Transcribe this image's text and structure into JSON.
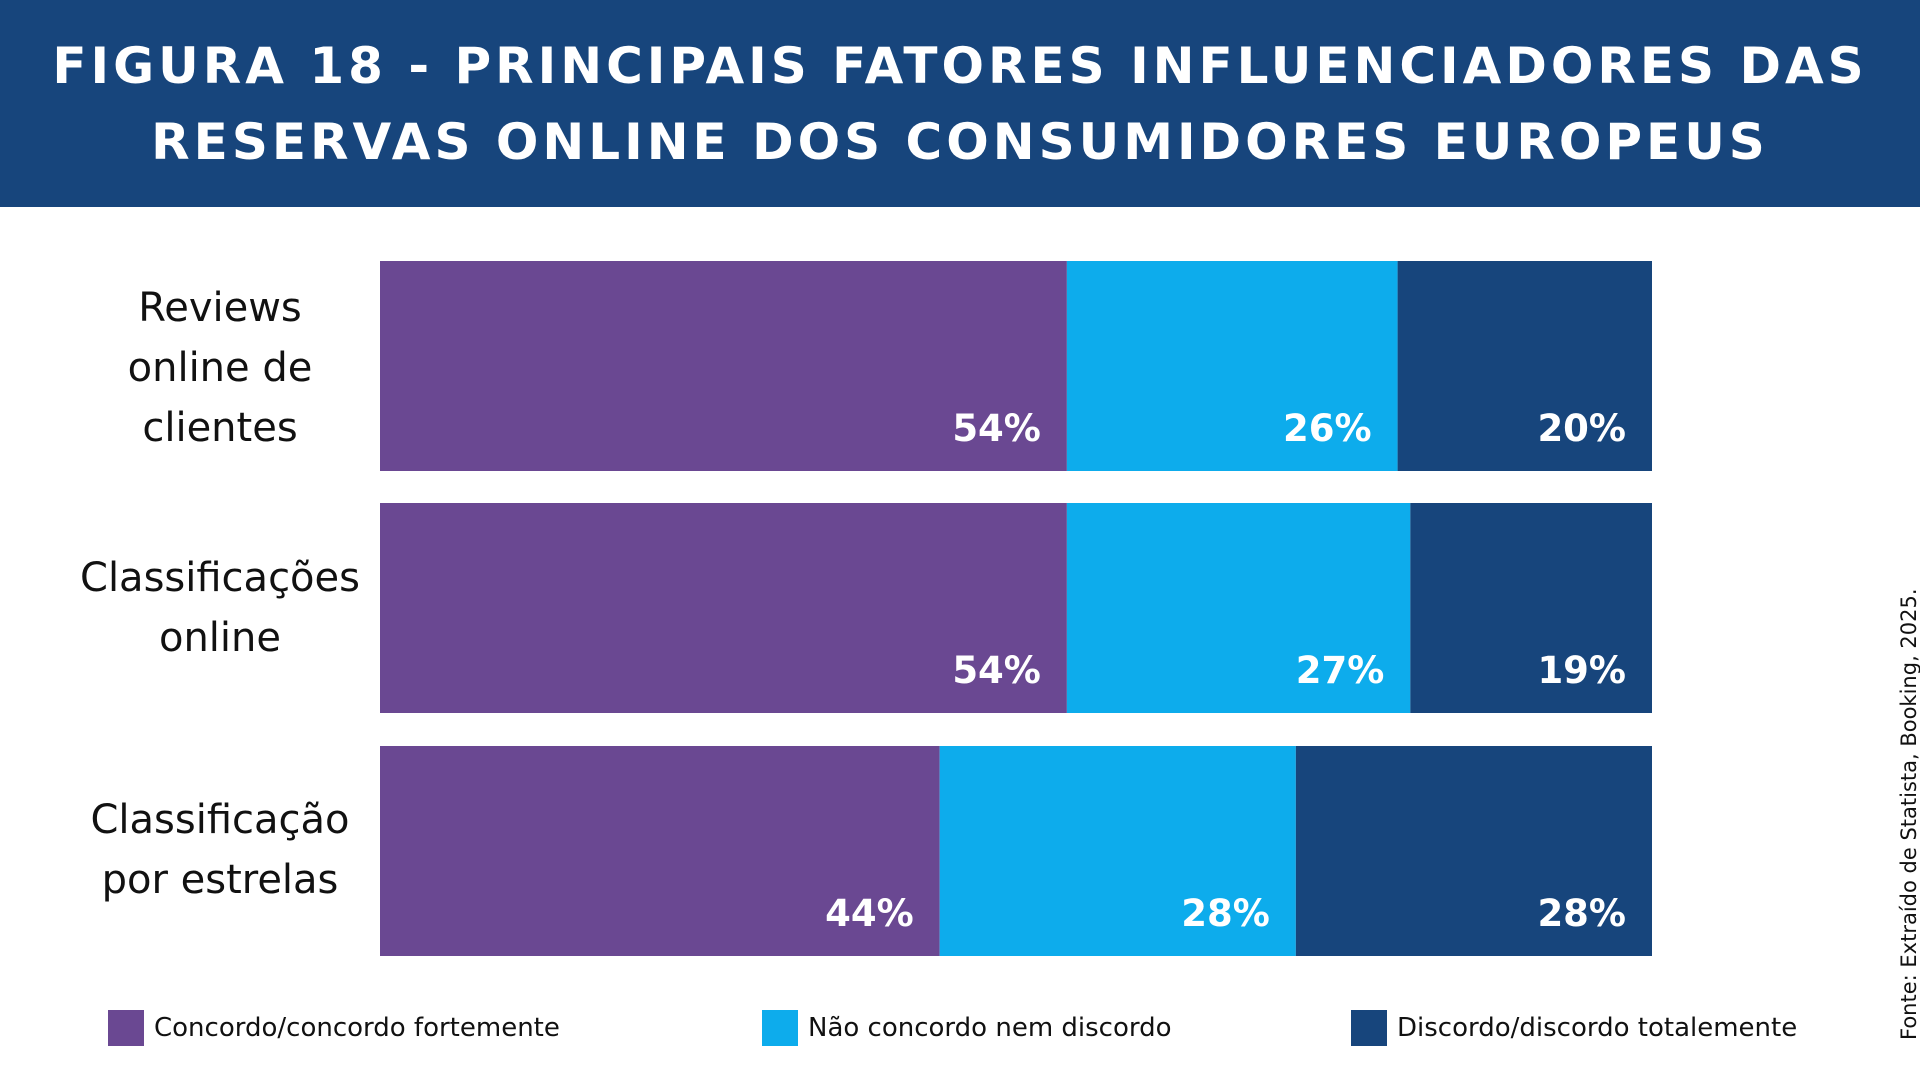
{
  "title": {
    "line1": "FIGURA 18 - PRINCIPAIS FATORES INFLUENCIADORES DAS",
    "line2": "RESERVAS ONLINE DOS CONSUMIDORES EUROPEUS"
  },
  "source": "Fonte: Extraído de Statista, Booking, 2025.",
  "colors": {
    "header_bg": "#17457c",
    "concordo": "#6a4892",
    "neutro": "#0dacec",
    "discordo": "#17457c"
  },
  "legend": [
    {
      "label": "Concordo/concordo fortemente",
      "color": "#6a4892"
    },
    {
      "label": "Não concordo nem discordo",
      "color": "#0dacec"
    },
    {
      "label": "Discordo/discordo totalemente",
      "color": "#17457c"
    }
  ],
  "categories_display": [
    {
      "lines": [
        "Reviews",
        "online de",
        "clientes"
      ]
    },
    {
      "lines": [
        "Classificações",
        "online"
      ]
    },
    {
      "lines": [
        "Classificação",
        "por estrelas"
      ]
    }
  ],
  "chart_data": {
    "type": "bar",
    "orientation": "horizontal",
    "stacked": true,
    "title": "FIGURA 18 - PRINCIPAIS FATORES INFLUENCIADORES DAS RESERVAS ONLINE DOS CONSUMIDORES EUROPEUS",
    "categories": [
      "Reviews online de clientes",
      "Classificações online",
      "Classificação por estrelas"
    ],
    "series": [
      {
        "name": "Concordo/concordo fortemente",
        "values": [
          54,
          54,
          44
        ],
        "labels": [
          "54%",
          "54%",
          "44%"
        ],
        "color": "#6a4892"
      },
      {
        "name": "Não concordo nem discordo",
        "values": [
          26,
          27,
          28
        ],
        "labels": [
          "26%",
          "27%",
          "28%"
        ],
        "color": "#0dacec"
      },
      {
        "name": "Discordo/discordo totalemente",
        "values": [
          20,
          19,
          28
        ],
        "labels": [
          "20%",
          "19%",
          "28%"
        ],
        "color": "#17457c"
      }
    ],
    "xlim": [
      0,
      100
    ],
    "unit": "%",
    "grid": false,
    "legend_position": "bottom"
  }
}
